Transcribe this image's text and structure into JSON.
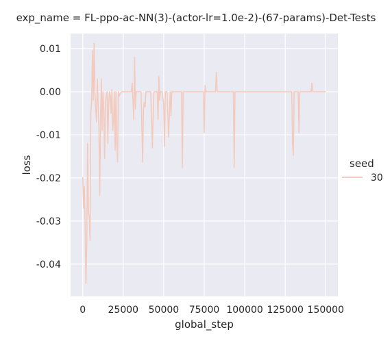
{
  "chart_data": {
    "type": "line",
    "title": "exp_name = FL-ppo-ac-NN(3)-(actor-lr=1.0e-2)-(67-params)-Det-Tests",
    "xlabel": "global_step",
    "ylabel": "loss",
    "xlim": [
      -7500,
      157500
    ],
    "ylim": [
      -0.0475,
      0.0135
    ],
    "x_ticks": [
      0,
      25000,
      50000,
      75000,
      100000,
      125000,
      150000
    ],
    "x_tick_labels": [
      "0",
      "25000",
      "50000",
      "75000",
      "100000",
      "125000",
      "150000"
    ],
    "y_ticks": [
      -0.04,
      -0.03,
      -0.02,
      -0.01,
      0.0,
      0.01
    ],
    "y_tick_labels": [
      "-0.04",
      "-0.03",
      "-0.02",
      "-0.01",
      "0.00",
      "0.01"
    ],
    "grid": true,
    "legend": {
      "title": "seed",
      "position": "right"
    },
    "colors": {
      "series": "#f3cbbe",
      "background": "#eaeaf2",
      "grid": "#ffffff"
    },
    "series": [
      {
        "name": "30",
        "x": [
          0,
          500,
          1000,
          1500,
          2000,
          2500,
          3000,
          3500,
          4000,
          4500,
          5000,
          5500,
          6000,
          6500,
          7000,
          7500,
          8000,
          8500,
          9000,
          9500,
          10000,
          10500,
          11000,
          11500,
          12000,
          12500,
          13000,
          13500,
          14000,
          14500,
          15000,
          15500,
          16000,
          16500,
          17000,
          17500,
          18000,
          18500,
          19000,
          19500,
          20000,
          20500,
          21000,
          21500,
          22000,
          22500,
          23000,
          24000,
          25000,
          26000,
          27000,
          28000,
          29000,
          30000,
          30500,
          31000,
          31500,
          32000,
          32500,
          33000,
          34000,
          35000,
          36000,
          37000,
          37500,
          38000,
          38500,
          39000,
          40000,
          41000,
          42000,
          43000,
          43500,
          44000,
          45000,
          46000,
          46500,
          47000,
          47500,
          48000,
          49000,
          50000,
          50500,
          51000,
          52000,
          53000,
          54000,
          54500,
          55000,
          56000,
          58000,
          60000,
          61000,
          61500,
          62000,
          64000,
          70000,
          74000,
          74500,
          75000,
          75500,
          76000,
          80000,
          82000,
          82500,
          83000,
          85000,
          90000,
          92000,
          93000,
          93500,
          94000,
          100000,
          110000,
          120000,
          129000,
          129500,
          130000,
          130500,
          131000,
          132000,
          133000,
          133500,
          134000,
          136000,
          140000,
          141000,
          141500,
          142000,
          145000,
          150000
        ],
        "values": [
          -0.0198,
          -0.027,
          -0.022,
          -0.032,
          -0.0445,
          -0.035,
          -0.012,
          -0.028,
          -0.029,
          -0.0345,
          -0.005,
          -0.002,
          0.0095,
          -0.002,
          0.0112,
          0.0,
          -0.004,
          -0.007,
          0.003,
          -0.003,
          -0.0082,
          -0.024,
          -0.006,
          0.003,
          -0.009,
          0.0,
          -0.004,
          -0.0155,
          -0.003,
          -0.001,
          0.0,
          -0.012,
          -0.003,
          0.0,
          -0.001,
          -0.005,
          0.0005,
          -0.009,
          -0.007,
          0.0,
          -0.0135,
          0.0,
          -0.012,
          -0.0163,
          0.0,
          -0.001,
          -0.0005,
          0.0,
          0.0,
          0.0,
          0.0,
          0.0,
          0.0,
          0.0,
          0.002,
          -0.002,
          -0.0065,
          0.008,
          -0.004,
          0.0,
          0.0,
          0.0,
          0.0,
          -0.0163,
          -0.004,
          -0.0025,
          -0.0035,
          0.0,
          0.0,
          0.0,
          0.0,
          -0.013,
          -0.005,
          0.0,
          0.0,
          0.0,
          -0.0065,
          0.0035,
          -0.002,
          0.0,
          0.0,
          -0.003,
          -0.0128,
          0.0,
          0.0,
          -0.0105,
          0.0,
          -0.0055,
          0.0,
          0.0,
          0.0,
          0.0,
          0.0,
          -0.0176,
          0.0,
          0.0,
          0.0,
          0.0,
          0.0,
          -0.0095,
          0.0015,
          0.0,
          0.0,
          0.0,
          0.0045,
          0.0,
          0.0,
          0.0,
          0.0,
          0.0,
          -0.0176,
          0.0,
          0.0,
          0.0,
          0.0,
          0.0,
          -0.012,
          -0.0148,
          0.0,
          0.0,
          0.0,
          0.0,
          -0.0095,
          0.0,
          0.0,
          0.0,
          0.0,
          0.002,
          0.0,
          0.0,
          0.0
        ]
      }
    ]
  }
}
